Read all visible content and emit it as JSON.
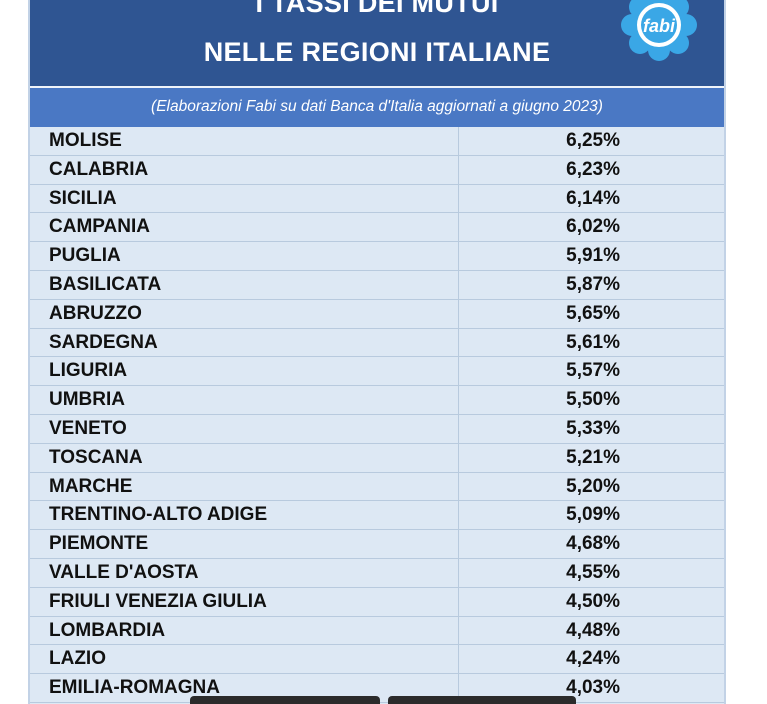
{
  "header": {
    "title_line1": "I TASSI DEI MUTUI",
    "title_line2": "NELLE REGIONI ITALIANE",
    "subtitle": "(Elaborazioni Fabi su dati Banca d'Italia aggiornati a giugno 2023)",
    "logo_text": "fabi"
  },
  "colors": {
    "header_bg": "#2f5592",
    "subheader_bg": "#4a78c4",
    "table_bg": "#dde8f4",
    "logo_blue": "#3aa7e6"
  },
  "chart_data": {
    "type": "table",
    "title": "I TASSI DEI MUTUI NELLE REGIONI ITALIANE",
    "subtitle": "(Elaborazioni Fabi su dati Banca d'Italia aggiornati a giugno 2023)",
    "rows": [
      {
        "region": "MOLISE",
        "value": "6,25%"
      },
      {
        "region": "CALABRIA",
        "value": "6,23%"
      },
      {
        "region": "SICILIA",
        "value": "6,14%"
      },
      {
        "region": "CAMPANIA",
        "value": "6,02%"
      },
      {
        "region": "PUGLIA",
        "value": "5,91%"
      },
      {
        "region": "BASILICATA",
        "value": "5,87%"
      },
      {
        "region": "ABRUZZO",
        "value": "5,65%"
      },
      {
        "region": "SARDEGNA",
        "value": "5,61%"
      },
      {
        "region": "LIGURIA",
        "value": "5,57%"
      },
      {
        "region": "UMBRIA",
        "value": "5,50%"
      },
      {
        "region": "VENETO",
        "value": "5,33%"
      },
      {
        "region": "TOSCANA",
        "value": "5,21%"
      },
      {
        "region": "MARCHE",
        "value": "5,20%"
      },
      {
        "region": "TRENTINO-ALTO ADIGE",
        "value": "5,09%"
      },
      {
        "region": "PIEMONTE",
        "value": "4,68%"
      },
      {
        "region": "VALLE D'AOSTA",
        "value": "4,55%"
      },
      {
        "region": "FRIULI VENEZIA GIULIA",
        "value": "4,50%"
      },
      {
        "region": "LOMBARDIA",
        "value": "4,48%"
      },
      {
        "region": "LAZIO",
        "value": "4,24%"
      },
      {
        "region": "EMILIA-ROMAGNA",
        "value": "4,03%"
      }
    ]
  }
}
